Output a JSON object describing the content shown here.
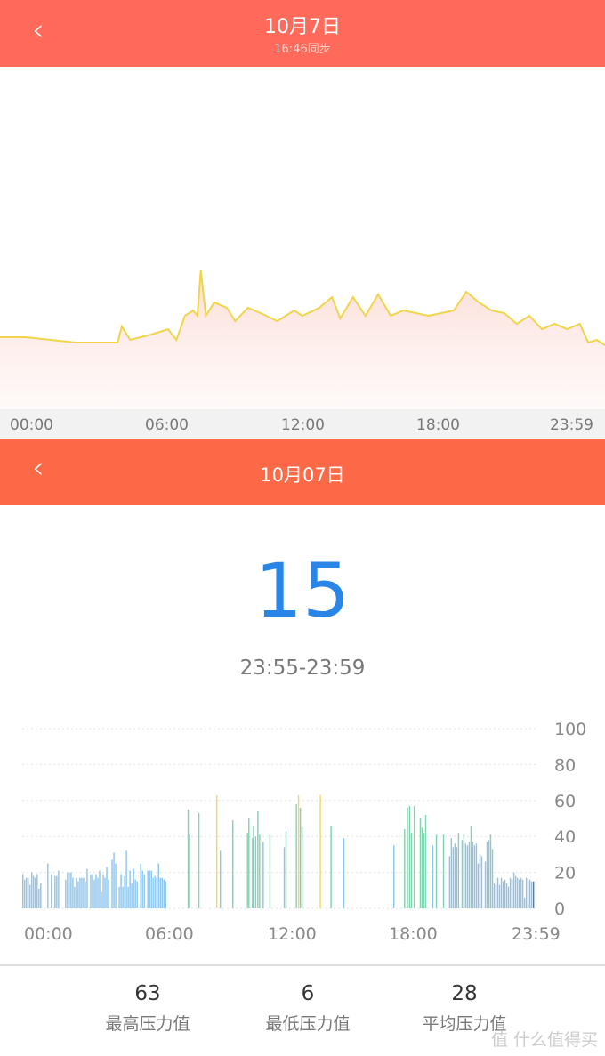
{
  "header_top": {
    "title": "10月7日",
    "subtitle": "16:46同步",
    "back_icon": "chevron-left-icon"
  },
  "header_bottom": {
    "title": "10月07日",
    "back_icon": "chevron-left-icon"
  },
  "colors": {
    "header_top": "#ff6a5a",
    "header_bottom": "#fb6947",
    "value": "#2a86e6",
    "line": "#f0d54a",
    "bar_low": "#8cc4ec",
    "bar_mid": "#7fd3ae",
    "bar_high": "#f3d65a",
    "bar_selected": "#2f86df"
  },
  "current": {
    "value": "15",
    "time_range": "23:55-23:59"
  },
  "stats": [
    {
      "value": "63",
      "label": "最高压力值"
    },
    {
      "value": "6",
      "label": "最低压力值"
    },
    {
      "value": "28",
      "label": "平均压力值"
    }
  ],
  "watermark": "值 什么值得买",
  "chart_data": [
    {
      "type": "area",
      "x_ticks": [
        "00:00",
        "06:00",
        "12:00",
        "18:00",
        "23:59"
      ],
      "grid": false,
      "points": [
        [
          0,
          27
        ],
        [
          60,
          27
        ],
        [
          120,
          26
        ],
        [
          180,
          25
        ],
        [
          280,
          25
        ],
        [
          290,
          31
        ],
        [
          310,
          26
        ],
        [
          360,
          28
        ],
        [
          400,
          30
        ],
        [
          420,
          26
        ],
        [
          440,
          35
        ],
        [
          460,
          37
        ],
        [
          470,
          35
        ],
        [
          478,
          52
        ],
        [
          490,
          35
        ],
        [
          510,
          40
        ],
        [
          540,
          38
        ],
        [
          560,
          33
        ],
        [
          590,
          38
        ],
        [
          620,
          36
        ],
        [
          660,
          33
        ],
        [
          700,
          37
        ],
        [
          720,
          35
        ],
        [
          760,
          38
        ],
        [
          790,
          42
        ],
        [
          810,
          34
        ],
        [
          840,
          42
        ],
        [
          870,
          35
        ],
        [
          900,
          43
        ],
        [
          930,
          35
        ],
        [
          960,
          37
        ],
        [
          1020,
          35
        ],
        [
          1080,
          37
        ],
        [
          1110,
          44
        ],
        [
          1140,
          40
        ],
        [
          1170,
          37
        ],
        [
          1200,
          36
        ],
        [
          1230,
          32
        ],
        [
          1260,
          35
        ],
        [
          1290,
          30
        ],
        [
          1320,
          32
        ],
        [
          1350,
          30
        ],
        [
          1380,
          32
        ],
        [
          1400,
          25
        ],
        [
          1420,
          26
        ],
        [
          1440,
          24
        ]
      ]
    },
    {
      "type": "bar",
      "ylim": [
        0,
        100
      ],
      "y_ticks": [
        "100",
        "80",
        "60",
        "40",
        "20",
        "0"
      ],
      "x_ticks": [
        "00:00",
        "06:00",
        "12:00",
        "18:00",
        "23:59"
      ],
      "grid": true,
      "morning": {
        "start_minute": 0,
        "step_minutes": 5,
        "values": [
          19,
          16,
          17,
          17,
          13,
          20,
          18,
          17,
          19,
          11,
          14,
          null,
          null,
          null,
          25,
          null,
          19,
          null,
          18,
          18,
          21,
          null,
          null,
          null,
          16,
          20,
          20,
          20,
          17,
          12,
          17,
          15,
          17,
          17,
          17,
          15,
          22,
          null,
          19,
          19,
          16,
          19,
          17,
          21,
          9,
          19,
          17,
          23,
          16,
          null,
          27,
          31,
          25,
          null,
          12,
          19,
          12,
          18,
          32,
          12,
          21,
          14,
          22,
          16,
          15,
          null,
          25,
          21,
          19,
          null,
          21,
          21,
          21,
          17,
          18,
          17,
          25,
          17,
          17,
          16,
          15
        ]
      },
      "sparse": [
        [
          463,
          55
        ],
        [
          467,
          41
        ],
        [
          493,
          53
        ],
        [
          543,
          63
        ],
        [
          553,
          32
        ],
        [
          588,
          49
        ],
        [
          629,
          42
        ],
        [
          633,
          50
        ],
        [
          643,
          39
        ],
        [
          646,
          46
        ],
        [
          652,
          40
        ],
        [
          658,
          54
        ],
        [
          663,
          41
        ],
        [
          673,
          37
        ],
        [
          692,
          41
        ],
        [
          732,
          34
        ],
        [
          737,
          43
        ],
        [
          766,
          58
        ],
        [
          772,
          63
        ],
        [
          777,
          56
        ],
        [
          782,
          45
        ],
        [
          833,
          63
        ],
        [
          863,
          46
        ],
        [
          899,
          39
        ],
        [
          1039,
          35
        ],
        [
          1069,
          44
        ],
        [
          1077,
          56
        ],
        [
          1083,
          57
        ],
        [
          1088,
          42
        ],
        [
          1096,
          57
        ],
        [
          1113,
          50
        ],
        [
          1118,
          45
        ],
        [
          1123,
          42
        ],
        [
          1128,
          52
        ],
        [
          1148,
          35
        ],
        [
          1158,
          41
        ],
        [
          1178,
          41
        ]
      ],
      "evening": {
        "start_minute": 1195,
        "step_minutes": 5,
        "values": [
          29,
          39,
          34,
          36,
          34,
          42,
          null,
          38,
          41,
          36,
          35,
          37,
          46,
          37,
          35,
          36,
          25,
          30,
          29,
          null,
          26,
          37,
          38,
          41,
          33,
          14,
          13,
          17,
          13,
          17,
          15,
          16,
          14,
          12,
          17,
          16,
          20,
          18,
          17,
          16,
          17,
          16,
          6,
          17,
          15,
          16,
          15,
          15
        ]
      }
    }
  ]
}
